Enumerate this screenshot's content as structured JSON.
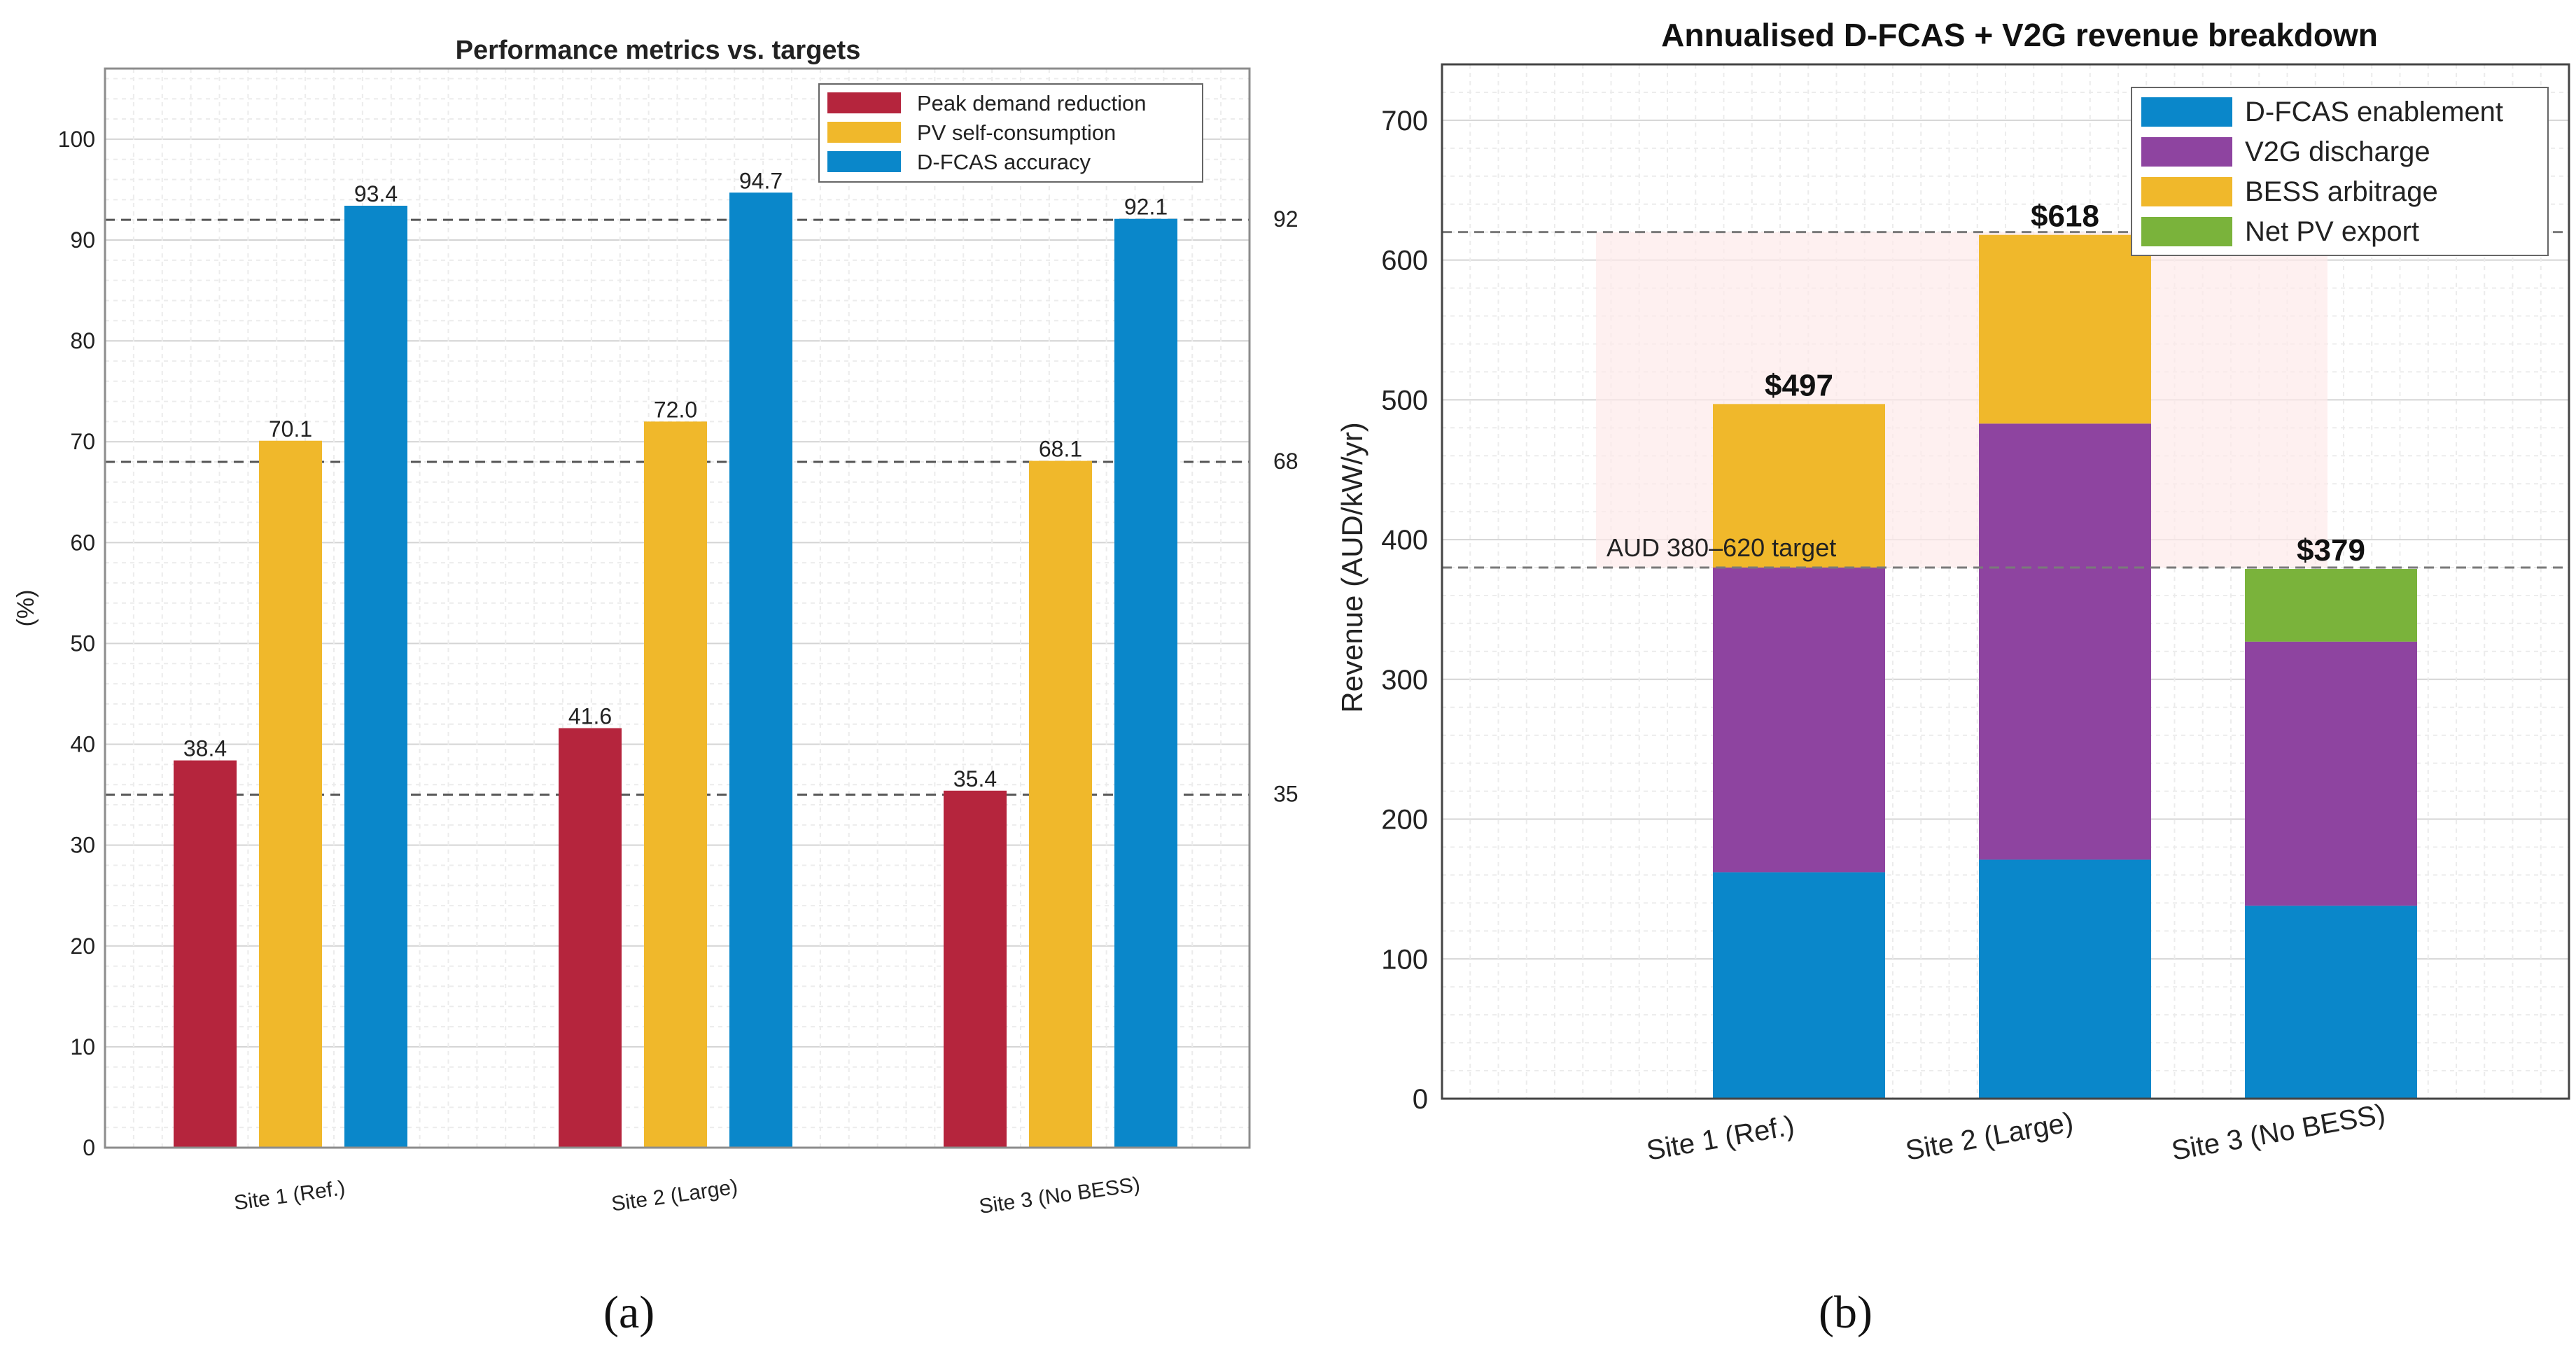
{
  "chart_data": [
    {
      "type": "bar",
      "title": "Performance metrics vs. targets",
      "ylabel": "(%)",
      "ylim": [
        0,
        107
      ],
      "yticks": [
        0,
        10,
        20,
        30,
        40,
        50,
        60,
        70,
        80,
        90,
        100
      ],
      "categories": [
        "Site 1 (Ref.)",
        "Site 2 (Large)",
        "Site 3 (No BESS)"
      ],
      "series": [
        {
          "name": "Peak demand reduction",
          "color": "#b5253d",
          "values": [
            38.4,
            41.6,
            35.4
          ],
          "labels": [
            "38.4",
            "41.6",
            "35.4"
          ]
        },
        {
          "name": "PV self-consumption",
          "color": "#f0b82b",
          "values": [
            70.1,
            72.0,
            68.1
          ],
          "labels": [
            "70.1",
            "72.0",
            "68.1"
          ]
        },
        {
          "name": "D-FCAS accuracy",
          "color": "#0a87ca",
          "values": [
            93.4,
            94.7,
            92.1
          ],
          "labels": [
            "93.4",
            "94.7",
            "92.1"
          ]
        }
      ],
      "target_lines": [
        {
          "value": 92,
          "label": "92"
        },
        {
          "value": 68,
          "label": "68"
        },
        {
          "value": 35,
          "label": "35"
        }
      ],
      "legend_position": "top-right",
      "grid": true,
      "caption": "(a)"
    },
    {
      "type": "stacked-bar",
      "title": "Annualised D-FCAS + V2G revenue breakdown",
      "ylabel": "Revenue (AUD/kW/yr)",
      "ylim": [
        0,
        740
      ],
      "yticks": [
        0,
        100,
        200,
        300,
        400,
        500,
        600,
        700
      ],
      "categories": [
        "Site 1 (Ref.)",
        "Site 2 (Large)",
        "Site 3 (No BESS)"
      ],
      "series": [
        {
          "name": "D-FCAS enablement",
          "color": "#0a87ca",
          "values": [
            162,
            171,
            138
          ]
        },
        {
          "name": "V2G discharge",
          "color": "#8e44a0",
          "values": [
            218,
            312,
            189
          ]
        },
        {
          "name": "BESS arbitrage",
          "color": "#f0b82b",
          "values": [
            117,
            135,
            0
          ]
        },
        {
          "name": "Net PV export",
          "color": "#7ab33b",
          "values": [
            0,
            0,
            52
          ]
        }
      ],
      "totals": [
        "$497",
        "$618",
        "$379"
      ],
      "target_band": {
        "range": [
          380,
          620
        ],
        "label": "AUD 380–620 target"
      },
      "legend_position": "top-right",
      "grid": true,
      "caption": "(b)"
    }
  ]
}
